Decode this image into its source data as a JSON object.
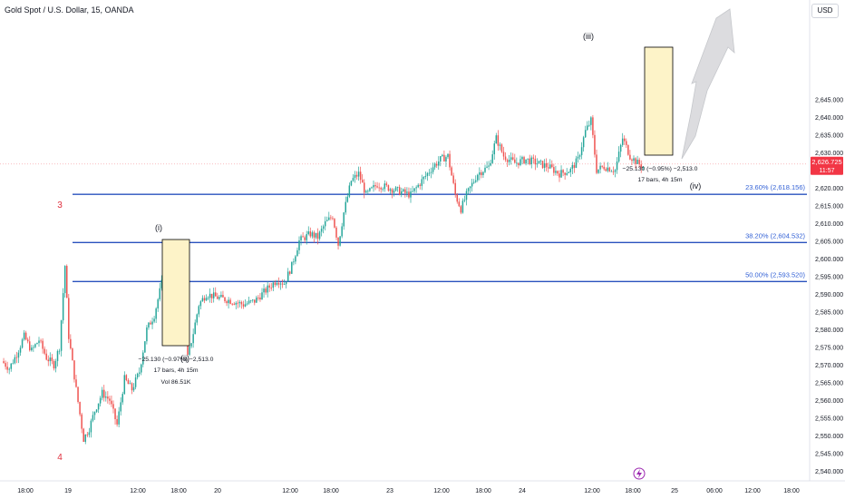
{
  "title": "Gold Spot / U.S. Dollar, 15, OANDA",
  "currency": "USD",
  "colors": {
    "up": "#26a69a",
    "down": "#ef5350",
    "fib_line": "#2a52be",
    "fib_label": "#3462d6",
    "price_tag": "#f23645",
    "price_line": "#f7a8ad",
    "box_fill": "#fdf3c8",
    "box_stroke": "#000000",
    "wave_red": "#e0303e",
    "arrow_fill": "#d9d9dc",
    "axis_text": "#131722",
    "lightning": "#9c27b0"
  },
  "current_price": {
    "value": 2626.725,
    "label": "2,626.725",
    "countdown": "11:57"
  },
  "fib_levels": [
    {
      "label": "23.60% (2,618.156)",
      "price": 2618.156
    },
    {
      "label": "38.20% (2,604.532)",
      "price": 2604.532
    },
    {
      "label": "50.00% (2,593.520)",
      "price": 2593.52
    }
  ],
  "wave_labels": [
    {
      "text": "3",
      "color": "red"
    },
    {
      "text": "4",
      "color": "red"
    },
    {
      "text": "(i)",
      "color": "dark"
    },
    {
      "text": "(ii)",
      "color": "dark"
    },
    {
      "text": "(iii)",
      "color": "dark"
    },
    {
      "text": "(iv)",
      "color": "dark"
    }
  ],
  "measure_boxes": [
    {
      "line1": "−25.130 (−0.97%) −2,513.0",
      "line2": "17 bars, 4h 15m",
      "line3": "Vol 86.51K"
    },
    {
      "line1": "−25.130 (−0.95%) −2,513.0",
      "line2": "17 bars, 4h 15m",
      "line3": ""
    }
  ],
  "chart_data": {
    "type": "candlestick",
    "title": "Gold Spot / U.S. Dollar, 15, OANDA",
    "y_unit": "USD",
    "ylim": [
      2538,
      2650
    ],
    "y_ticks": [
      "2,540.000",
      "2,545.000",
      "2,550.000",
      "2,555.000",
      "2,560.000",
      "2,565.000",
      "2,570.000",
      "2,575.000",
      "2,580.000",
      "2,585.000",
      "2,590.000",
      "2,595.000",
      "2,600.000",
      "2,605.000",
      "2,610.000",
      "2,615.000",
      "2,620.000",
      "2,625.000",
      "2,630.000",
      "2,635.000",
      "2,640.000",
      "2,645.000"
    ],
    "x_ticks": [
      "18:00",
      "19",
      "12:00",
      "18:00",
      "20",
      "12:00",
      "18:00",
      "23",
      "12:00",
      "18:00",
      "24",
      "12:00",
      "18:00",
      "25",
      "06:00",
      "12:00",
      "18:00"
    ],
    "close_path": [
      [
        0,
        2571
      ],
      [
        4,
        2569
      ],
      [
        8,
        2573
      ],
      [
        12,
        2578
      ],
      [
        16,
        2574
      ],
      [
        20,
        2577
      ],
      [
        24,
        2572
      ],
      [
        28,
        2570
      ],
      [
        31,
        2575
      ],
      [
        34,
        2598
      ],
      [
        36,
        2578
      ],
      [
        40,
        2563
      ],
      [
        44,
        2549
      ],
      [
        47,
        2552
      ],
      [
        50,
        2557
      ],
      [
        54,
        2562
      ],
      [
        58,
        2560
      ],
      [
        62,
        2553
      ],
      [
        66,
        2566
      ],
      [
        70,
        2563
      ],
      [
        74,
        2568
      ],
      [
        78,
        2580
      ],
      [
        82,
        2584
      ],
      [
        86,
        2593
      ],
      [
        90,
        2591
      ],
      [
        94,
        2588
      ],
      [
        97,
        2590
      ],
      [
        100,
        2572
      ],
      [
        103,
        2579
      ],
      [
        106,
        2587
      ],
      [
        110,
        2590
      ],
      [
        116,
        2589
      ],
      [
        124,
        2588
      ],
      [
        130,
        2587
      ],
      [
        136,
        2588
      ],
      [
        142,
        2591
      ],
      [
        148,
        2594
      ],
      [
        152,
        2593
      ],
      [
        156,
        2598
      ],
      [
        160,
        2605
      ],
      [
        166,
        2607
      ],
      [
        170,
        2606
      ],
      [
        174,
        2610
      ],
      [
        178,
        2612
      ],
      [
        181,
        2604
      ],
      [
        184,
        2613
      ],
      [
        188,
        2622
      ],
      [
        192,
        2624
      ],
      [
        196,
        2618
      ],
      [
        202,
        2621
      ],
      [
        208,
        2620
      ],
      [
        214,
        2619
      ],
      [
        220,
        2618
      ],
      [
        226,
        2622
      ],
      [
        232,
        2626
      ],
      [
        236,
        2628
      ],
      [
        240,
        2629
      ],
      [
        244,
        2618
      ],
      [
        247,
        2614
      ],
      [
        250,
        2618
      ],
      [
        256,
        2624
      ],
      [
        262,
        2626
      ],
      [
        266,
        2634
      ],
      [
        270,
        2629
      ],
      [
        276,
        2627
      ],
      [
        282,
        2628
      ],
      [
        288,
        2627
      ],
      [
        294,
        2626
      ],
      [
        300,
        2624
      ],
      [
        306,
        2625
      ],
      [
        310,
        2628
      ],
      [
        314,
        2636
      ],
      [
        317,
        2639
      ],
      [
        320,
        2625
      ],
      [
        324,
        2626
      ],
      [
        330,
        2625
      ],
      [
        334,
        2634
      ],
      [
        338,
        2629
      ],
      [
        342,
        2627
      ],
      [
        345,
        2626
      ]
    ],
    "series": [
      {
        "name": "Gold Spot / U.S. Dollar, 15, OANDA",
        "values": "see close_path (index, close)"
      }
    ]
  }
}
